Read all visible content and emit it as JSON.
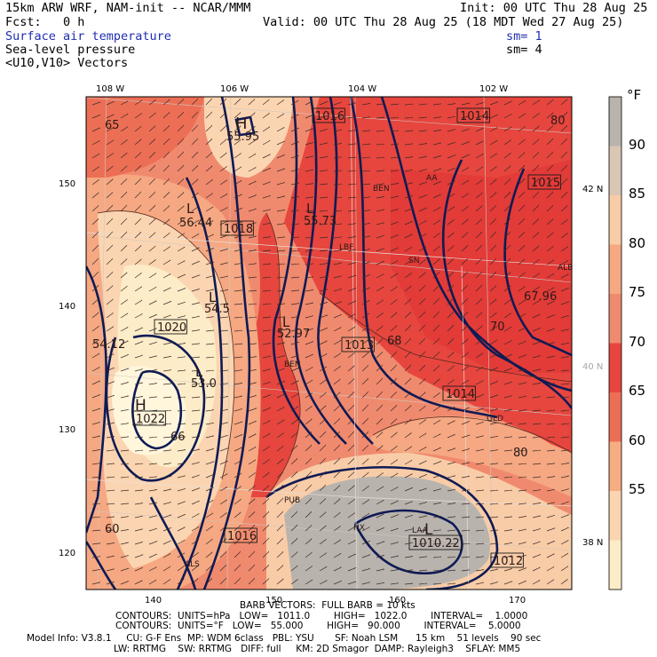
{
  "header": {
    "model": "15km ARW WRF, NAM-init -- NCAR/MMM",
    "init": "Init: 00 UTC Thu 28 Aug 25",
    "fcst": "Fcst:   0 h",
    "valid": "Valid: 00 UTC Thu 28 Aug 25 (18 MDT Wed 27 Aug 25)",
    "field1": "Surface air temperature",
    "field2": "Sea-level pressure",
    "field3": "<U10,V10> Vectors",
    "sm1": "sm= 1",
    "sm2": "sm= 4"
  },
  "axes": {
    "top_lon": [
      "108 W",
      "106 W",
      "104 W",
      "102 W"
    ],
    "left_y": [
      "150",
      "140",
      "130",
      "120"
    ],
    "bottom_x": [
      "140",
      "150",
      "160",
      "170"
    ],
    "right_lat": [
      "42 N",
      "40 N",
      "38 N"
    ]
  },
  "colorbar": {
    "unit": "°F",
    "labels": [
      "90",
      "85",
      "80",
      "75",
      "70",
      "65",
      "60",
      "55"
    ],
    "colors": [
      "#b9b3ad",
      "#d9c6b3",
      "#f8cca7",
      "#f5a882",
      "#f08a6e",
      "#e6463e",
      "#ec6f55",
      "#f6ad82",
      "#fbd5b1",
      "#fcecc8"
    ]
  },
  "map_labels": {
    "temps": [
      "55.95",
      "55.73",
      "56.44",
      "54.5",
      "54.12",
      "52.97",
      "53.0",
      "67.96",
      "80",
      "80",
      "70",
      "68",
      "60",
      "65",
      "66"
    ],
    "isobars": [
      "1016",
      "1014",
      "1015",
      "1018",
      "1020",
      "1013",
      "1014",
      "1022",
      "1016",
      "1012",
      "1010.22"
    ],
    "highs_lows": [
      "H",
      "L",
      "L",
      "L",
      "L",
      "H",
      "L",
      "L"
    ],
    "stations": [
      "AA",
      "SN",
      "BEN",
      "BEN",
      "GLD",
      "HX",
      "LAA",
      "ALS",
      "PUB",
      "LBF",
      "ALB"
    ]
  },
  "footer": {
    "barb": "BARB VECTORS:  FULL BARB = 10 kts",
    "contours1": "CONTOURS:  UNITS=hPa   LOW=   1011.0        HIGH=   1022.0        INTERVAL=    1.0000",
    "contours2": "CONTOURS:  UNITS=°F   LOW=   55.000        HIGH=   90.000        INTERVAL=    5.0000",
    "model_info": "Model Info: V3.8.1     CU: G-F Ens  MP: WDM 6class   PBL: YSU       SF: Noah LSM      15 km    51 levels    90 sec",
    "model_info2": "LW: RRTMG    SW: RRTMG   DIFF: full     KM: 2D Smagor  DAMP: Rayleigh3    SFLAY: MM5"
  }
}
